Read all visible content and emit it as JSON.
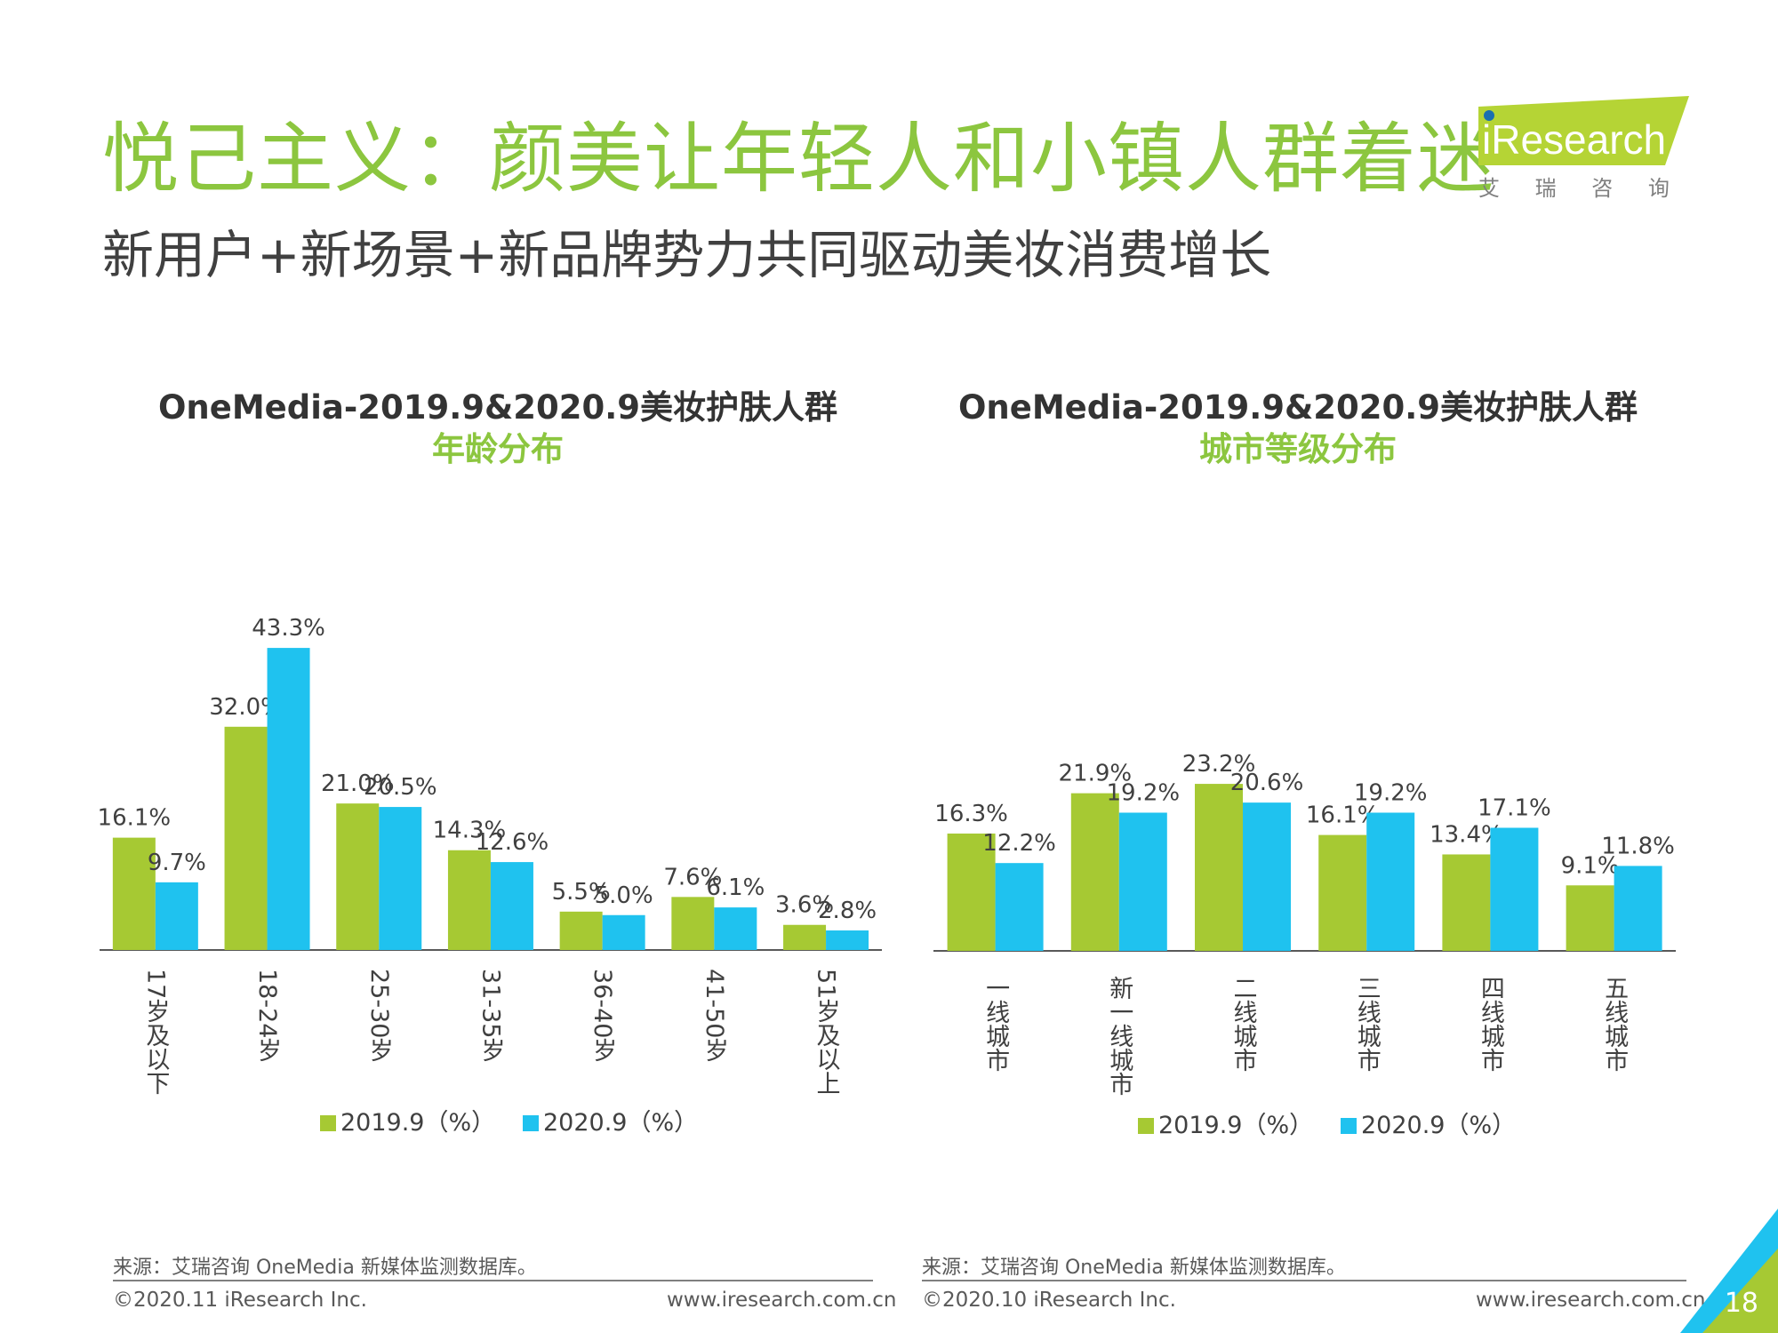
{
  "header": {
    "title": "悦己主义：颜美让年轻人和小镇人群着迷",
    "subtitle": "新用户+新场景+新品牌势力共同驱动美妆消费增长",
    "logo_text": "iResearch",
    "logo_cn": "艾 瑞 咨 询"
  },
  "colors": {
    "green": "#a6c933",
    "blue": "#1fc2ef",
    "title_green": "#8cc63f"
  },
  "chart_data": [
    {
      "type": "bar",
      "title": "OneMedia-2019.9&2020.9美妆护肤人群",
      "subtitle": "年龄分布",
      "categories": [
        "17岁及以下",
        "18-24岁",
        "25-30岁",
        "31-35岁",
        "36-40岁",
        "41-50岁",
        "51岁及以上"
      ],
      "series": [
        {
          "name": "2019.9（%）",
          "values": [
            16.1,
            32.0,
            21.0,
            14.3,
            5.5,
            7.6,
            3.6
          ],
          "labels": [
            "16.1%",
            "32.0%",
            "21.0%",
            "14.3%",
            "5.5%",
            "7.6%",
            "3.6%"
          ]
        },
        {
          "name": "2020.9（%）",
          "values": [
            9.7,
            43.3,
            20.5,
            12.6,
            5.0,
            6.1,
            2.8
          ],
          "labels": [
            "9.7%",
            "43.3%",
            "20.5%",
            "12.6%",
            "5.0%",
            "6.1%",
            "2.8%"
          ]
        }
      ],
      "legend": "bottom"
    },
    {
      "type": "bar",
      "title": "OneMedia-2019.9&2020.9美妆护肤人群",
      "subtitle": "城市等级分布",
      "categories": [
        "一线城市",
        "新一线城市",
        "二线城市",
        "三线城市",
        "四线城市",
        "五线城市"
      ],
      "series": [
        {
          "name": "2019.9（%）",
          "values": [
            16.3,
            21.9,
            23.2,
            16.1,
            13.4,
            9.1
          ],
          "labels": [
            "16.3%",
            "21.9%",
            "23.2%",
            "16.1%",
            "13.4%",
            "9.1%"
          ]
        },
        {
          "name": "2020.9（%）",
          "values": [
            12.2,
            19.2,
            20.6,
            19.2,
            17.1,
            11.8
          ],
          "labels": [
            "12.2%",
            "19.2%",
            "20.6%",
            "19.2%",
            "17.1%",
            "11.8%"
          ]
        }
      ],
      "legend": "bottom"
    }
  ],
  "footer": {
    "left_source": "来源：艾瑞咨询 OneMedia 新媒体监测数据库。",
    "left_copyright": "©2020.11 iResearch Inc.",
    "left_url": "www.iresearch.com.cn",
    "right_source": "来源：艾瑞咨询 OneMedia 新媒体监测数据库。",
    "right_copyright": "©2020.10 iResearch Inc.",
    "right_url": "www.iresearch.com.cn",
    "page_number": "18"
  }
}
